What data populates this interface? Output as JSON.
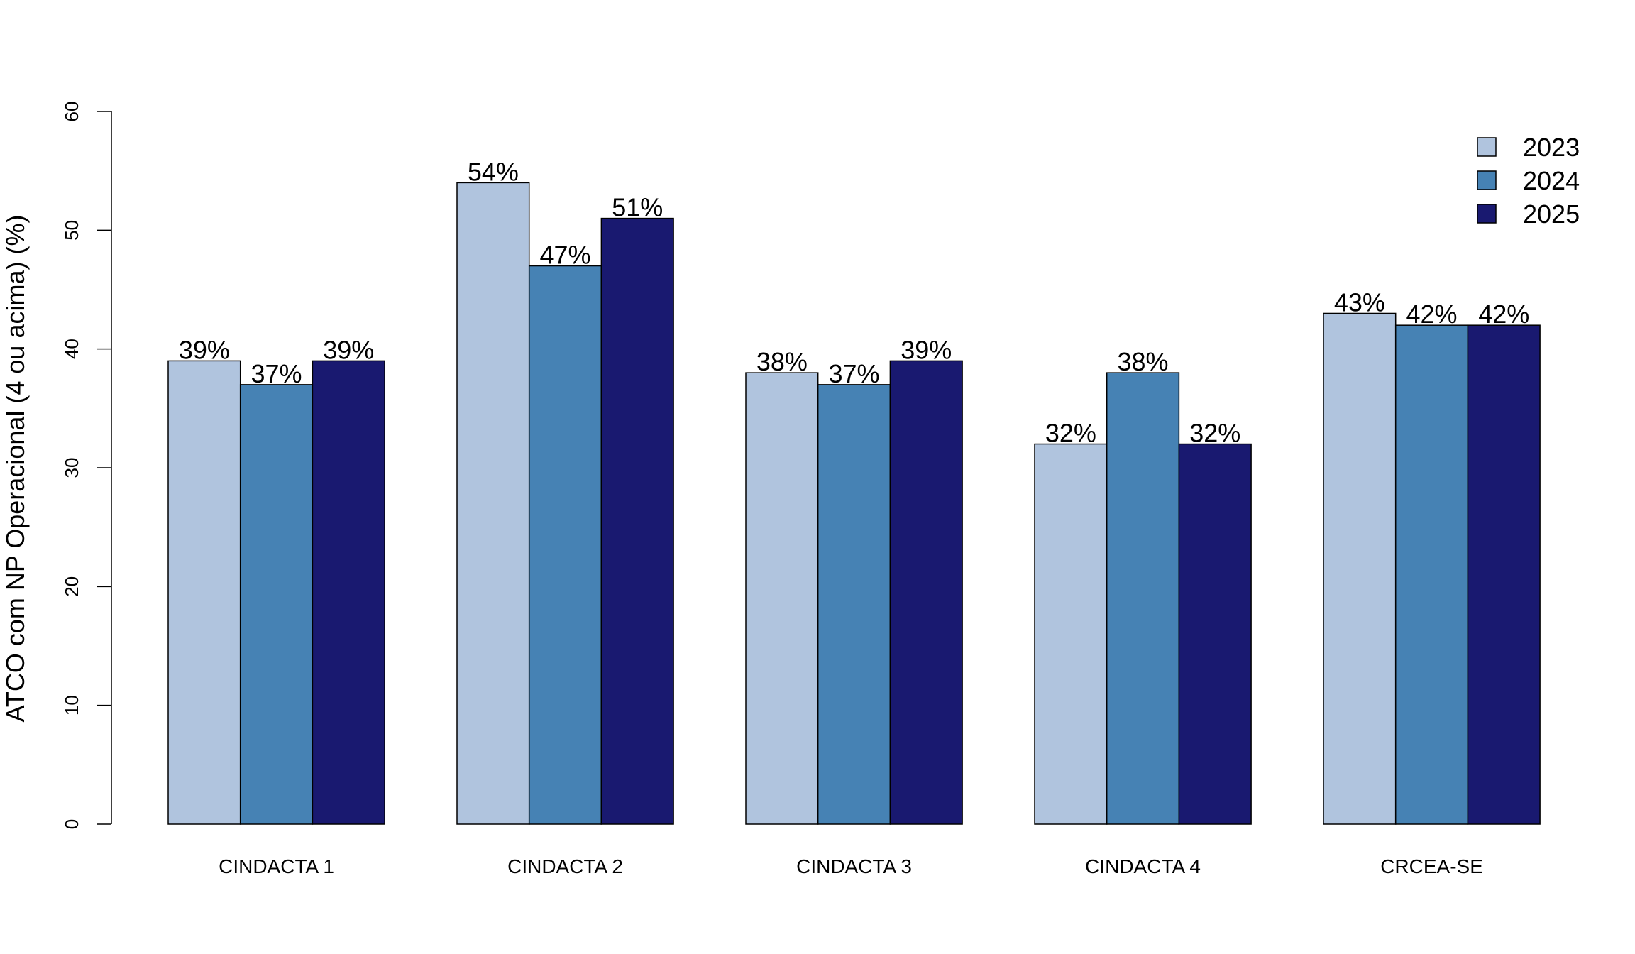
{
  "chart_data": {
    "type": "bar",
    "ylabel": "ATCO com NP Operacional (4 ou acima) (%)",
    "ylim": [
      0,
      60
    ],
    "yticks": [
      0,
      10,
      20,
      30,
      40,
      50,
      60
    ],
    "categories": [
      "CINDACTA 1",
      "CINDACTA 2",
      "CINDACTA 3",
      "CINDACTA 4",
      "CRCEA-SE"
    ],
    "series": [
      {
        "name": "2023",
        "color": "#b0c4de",
        "values": [
          39,
          54,
          38,
          32,
          43
        ],
        "labels": [
          "39%",
          "54%",
          "38%",
          "32%",
          "43%"
        ]
      },
      {
        "name": "2024",
        "color": "#4682b4",
        "values": [
          37,
          47,
          37,
          38,
          42
        ],
        "labels": [
          "37%",
          "47%",
          "37%",
          "38%",
          "42%"
        ]
      },
      {
        "name": "2025",
        "color": "#191970",
        "values": [
          39,
          51,
          39,
          32,
          42
        ],
        "labels": [
          "39%",
          "51%",
          "39%",
          "32%",
          "42%"
        ]
      }
    ],
    "legend_position": "top-right",
    "grid": false
  }
}
